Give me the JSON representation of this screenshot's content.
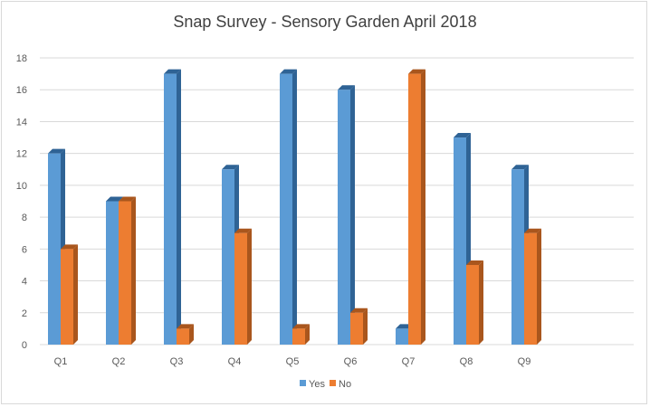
{
  "chart_data": {
    "type": "bar",
    "title": "Snap Survey - Sensory Garden April 2018",
    "categories": [
      "Q1",
      "Q2",
      "Q3",
      "Q4",
      "Q5",
      "Q6",
      "Q7",
      "Q8",
      "Q9"
    ],
    "series": [
      {
        "name": "Yes",
        "values": [
          12,
          9,
          17,
          11,
          17,
          16,
          1,
          13,
          11
        ],
        "color": "#5b9bd5",
        "shade": "#2f6395"
      },
      {
        "name": "No",
        "values": [
          6,
          9,
          1,
          7,
          1,
          2,
          17,
          5,
          7
        ],
        "color": "#ed7d31",
        "shade": "#a9561d"
      }
    ],
    "yticks": [
      "0",
      "2",
      "4",
      "6",
      "8",
      "10",
      "12",
      "14",
      "16",
      "18"
    ],
    "ylim": [
      0,
      18
    ],
    "grid": true,
    "legend_position": "bottom",
    "bar_style": "3d"
  }
}
